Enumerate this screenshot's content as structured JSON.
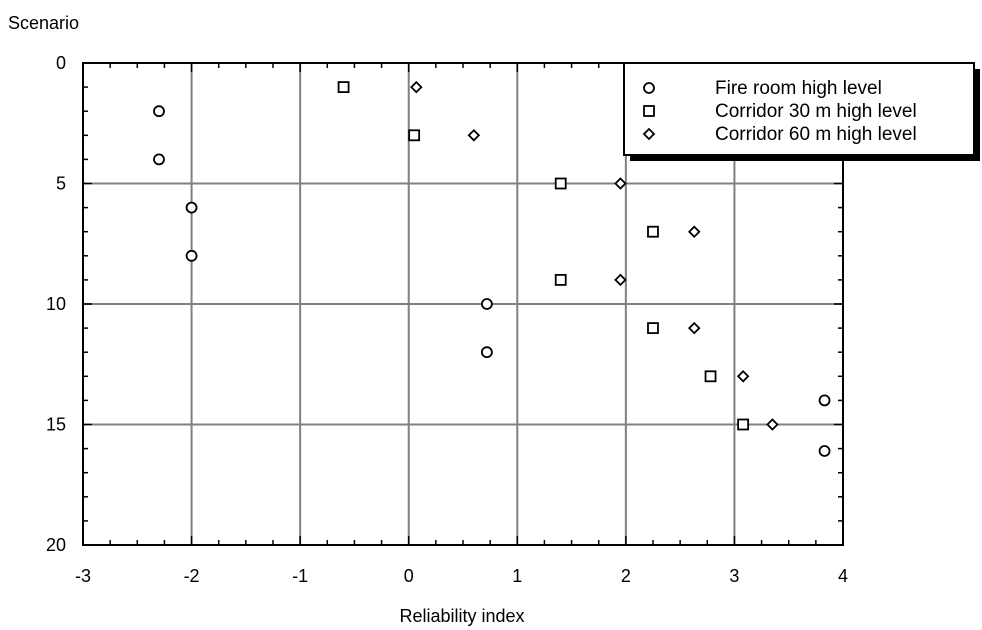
{
  "chart_data": {
    "type": "scatter",
    "title": "",
    "xlabel": "Reliability index",
    "ylabel": "Scenario",
    "xlim": [
      -3,
      4
    ],
    "ylim": [
      0,
      20
    ],
    "y_inverted": true,
    "grid": true,
    "legend_position": "top-right",
    "xticks": [
      "-3",
      "-2",
      "-1",
      "0",
      "1",
      "2",
      "3",
      "4"
    ],
    "yticks": [
      "0",
      "5",
      "10",
      "15",
      "20"
    ],
    "series": [
      {
        "name": "Fire room high level",
        "marker": "circle",
        "points": [
          {
            "x": -2.3,
            "y": 2
          },
          {
            "x": -2.3,
            "y": 4
          },
          {
            "x": -2.0,
            "y": 6
          },
          {
            "x": -2.0,
            "y": 8
          },
          {
            "x": 0.72,
            "y": 10
          },
          {
            "x": 0.72,
            "y": 12
          },
          {
            "x": 3.83,
            "y": 14
          },
          {
            "x": 3.83,
            "y": 16.1
          }
        ]
      },
      {
        "name": "Corridor 30 m high level",
        "marker": "square",
        "points": [
          {
            "x": -0.6,
            "y": 1
          },
          {
            "x": 0.05,
            "y": 3
          },
          {
            "x": 1.4,
            "y": 5
          },
          {
            "x": 1.4,
            "y": 9
          },
          {
            "x": 2.25,
            "y": 7
          },
          {
            "x": 2.25,
            "y": 11
          },
          {
            "x": 2.78,
            "y": 13
          },
          {
            "x": 3.08,
            "y": 15
          }
        ]
      },
      {
        "name": "Corridor 60 m high level",
        "marker": "diamond",
        "points": [
          {
            "x": 0.07,
            "y": 1
          },
          {
            "x": 0.6,
            "y": 3
          },
          {
            "x": 1.95,
            "y": 5
          },
          {
            "x": 1.95,
            "y": 9
          },
          {
            "x": 2.63,
            "y": 7
          },
          {
            "x": 2.63,
            "y": 11
          },
          {
            "x": 3.08,
            "y": 13
          },
          {
            "x": 3.35,
            "y": 15
          }
        ]
      }
    ]
  }
}
